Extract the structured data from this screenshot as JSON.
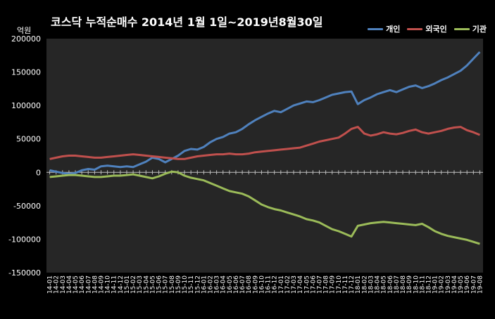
{
  "chart_data": {
    "type": "line",
    "title": "코스닥  누적순매수 2014년 1월 1일~2019년8월30일",
    "ylabel": "억원",
    "ylim": [
      -150000,
      200000
    ],
    "yticks": [
      "200000",
      "150000",
      "100000",
      "50000",
      "0",
      "-50000",
      "-100000",
      "-150000"
    ],
    "ytick_values": [
      200000,
      150000,
      100000,
      50000,
      0,
      -50000,
      -100000,
      -150000
    ],
    "categories": [
      "14-01",
      "14-02",
      "14-03",
      "14-04",
      "14-05",
      "14-06",
      "14-07",
      "14-08",
      "14-09",
      "14-10",
      "14-11",
      "14-12",
      "15-01",
      "15-02",
      "15-03",
      "15-04",
      "15-05",
      "15-06",
      "15-07",
      "15-08",
      "15-09",
      "15-10",
      "15-11",
      "15-12",
      "16-01",
      "16-02",
      "16-03",
      "16-04",
      "16-05",
      "16-06",
      "16-07",
      "16-08",
      "16-09",
      "16-10",
      "16-11",
      "16-12",
      "17-01",
      "17-02",
      "17-03",
      "17-04",
      "17-05",
      "17-06",
      "17-07",
      "17-08",
      "17-09",
      "17-10",
      "17-11",
      "17-12",
      "18-01",
      "18-02",
      "18-03",
      "18-04",
      "18-05",
      "18-06",
      "18-07",
      "18-08",
      "18-09",
      "18-10",
      "18-11",
      "18-12",
      "19-01",
      "19-02",
      "19-03",
      "19-04",
      "19-05",
      "19-06",
      "19-07",
      "19-08"
    ],
    "legend_position": "top-right",
    "grid": false,
    "series": [
      {
        "name": "개인",
        "color": "#4f81bd",
        "values": [
          3000,
          1000,
          -1000,
          -2000,
          -1000,
          3000,
          5000,
          4000,
          9000,
          10000,
          9000,
          8000,
          9000,
          8000,
          12000,
          16000,
          22000,
          20000,
          15000,
          20000,
          25000,
          32000,
          35000,
          34000,
          38000,
          45000,
          50000,
          53000,
          58000,
          60000,
          65000,
          72000,
          78000,
          83000,
          88000,
          92000,
          90000,
          95000,
          100000,
          103000,
          106000,
          105000,
          108000,
          112000,
          116000,
          118000,
          120000,
          121000,
          102000,
          108000,
          112000,
          117000,
          120000,
          123000,
          120000,
          124000,
          128000,
          130000,
          126000,
          129000,
          133000,
          138000,
          142000,
          147000,
          152000,
          160000,
          170000,
          180000
        ]
      },
      {
        "name": "외국인",
        "color": "#c0504d",
        "values": [
          20000,
          22000,
          24000,
          25000,
          25000,
          24000,
          23000,
          22000,
          22000,
          23000,
          24000,
          25000,
          26000,
          27000,
          26000,
          25000,
          24000,
          23000,
          22000,
          21000,
          20000,
          20000,
          22000,
          24000,
          25000,
          26000,
          27000,
          27000,
          28000,
          27000,
          27000,
          28000,
          30000,
          31000,
          32000,
          33000,
          34000,
          35000,
          36000,
          37000,
          40000,
          43000,
          46000,
          48000,
          50000,
          52000,
          58000,
          65000,
          68000,
          58000,
          55000,
          57000,
          60000,
          58000,
          57000,
          59000,
          62000,
          64000,
          60000,
          58000,
          60000,
          62000,
          65000,
          67000,
          68000,
          63000,
          60000,
          56000
        ]
      },
      {
        "name": "기관",
        "color": "#9bbb59",
        "values": [
          -7000,
          -6000,
          -5000,
          -4000,
          -4000,
          -5000,
          -6000,
          -7000,
          -7000,
          -6000,
          -5000,
          -5000,
          -4000,
          -3000,
          -5000,
          -7000,
          -9000,
          -6000,
          -2000,
          1000,
          0,
          -5000,
          -8000,
          -10000,
          -12000,
          -16000,
          -20000,
          -24000,
          -28000,
          -30000,
          -32000,
          -36000,
          -42000,
          -48000,
          -52000,
          -55000,
          -57000,
          -60000,
          -63000,
          -66000,
          -70000,
          -72000,
          -75000,
          -80000,
          -85000,
          -88000,
          -92000,
          -96000,
          -80000,
          -78000,
          -76000,
          -75000,
          -74000,
          -75000,
          -76000,
          -77000,
          -78000,
          -79000,
          -77000,
          -82000,
          -88000,
          -92000,
          -95000,
          -97000,
          -99000,
          -101000,
          -104000,
          -107000
        ]
      }
    ]
  }
}
